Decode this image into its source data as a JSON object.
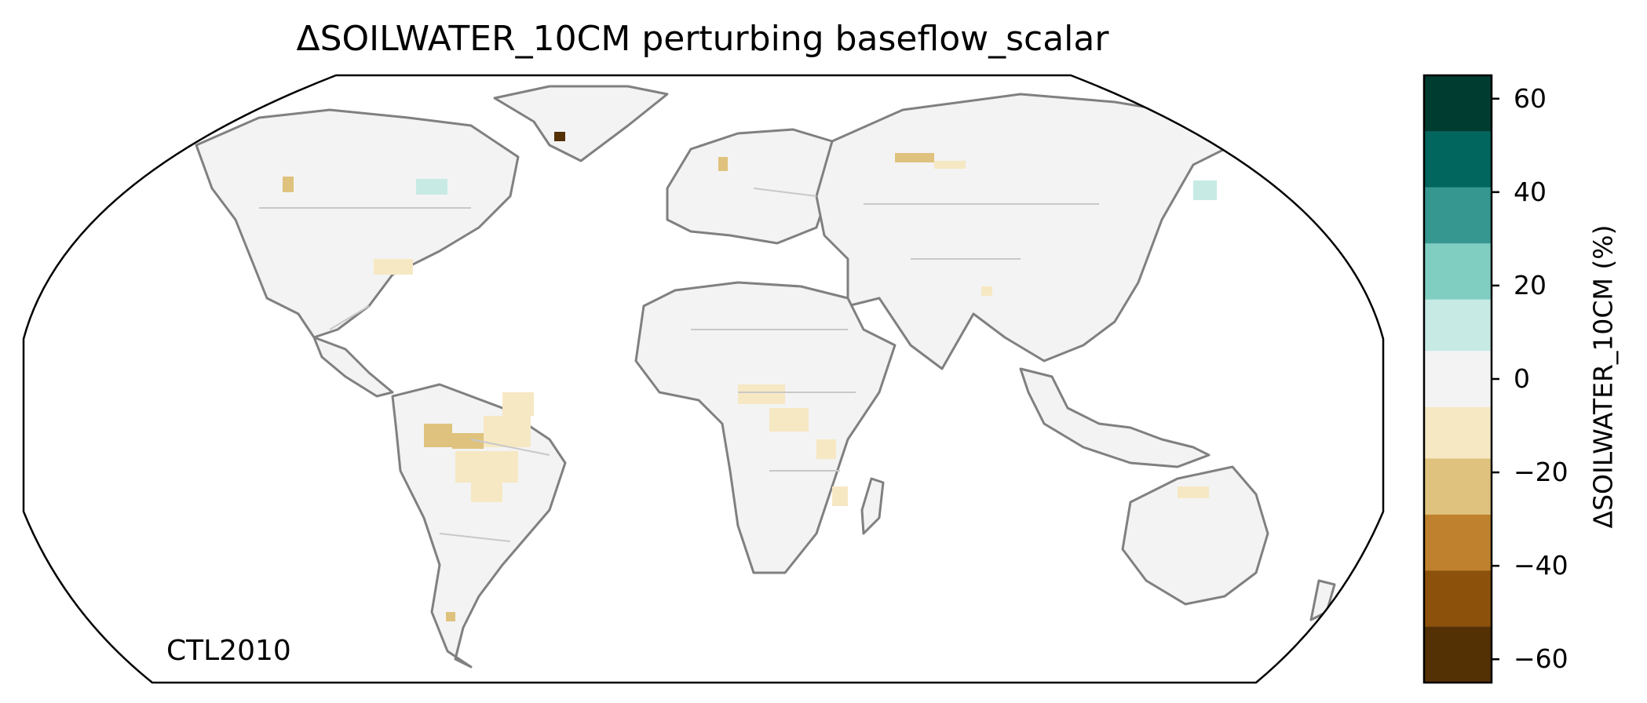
{
  "title": "ΔSOILWATER_10CM perturbing baseflow_scalar",
  "annotation": "CTL2010",
  "projection": "Robinson",
  "colorbar": {
    "label": "ΔSOILWATER_10CM (%)",
    "ticks": [
      {
        "value": 60,
        "label": "60"
      },
      {
        "value": 40,
        "label": "40"
      },
      {
        "value": 20,
        "label": "20"
      },
      {
        "value": 0,
        "label": "0"
      },
      {
        "value": -20,
        "label": "−20"
      },
      {
        "value": -40,
        "label": "−40"
      },
      {
        "value": -60,
        "label": "−60"
      }
    ],
    "range": [
      -65,
      65
    ],
    "bins": [
      {
        "from": -65,
        "to": -53,
        "color": "#543005"
      },
      {
        "from": -53,
        "to": -41,
        "color": "#8c510a"
      },
      {
        "from": -41,
        "to": -29,
        "color": "#bf812d"
      },
      {
        "from": -29,
        "to": -17,
        "color": "#dfc27d"
      },
      {
        "from": -17,
        "to": -6,
        "color": "#f6e8c3"
      },
      {
        "from": -6,
        "to": 6,
        "color": "#f3f3f3"
      },
      {
        "from": 6,
        "to": 17,
        "color": "#c7eae5"
      },
      {
        "from": 17,
        "to": 29,
        "color": "#80cdc1"
      },
      {
        "from": 29,
        "to": 41,
        "color": "#35978f"
      },
      {
        "from": 41,
        "to": 53,
        "color": "#01665e"
      },
      {
        "from": 53,
        "to": 65,
        "color": "#003c30"
      }
    ]
  },
  "colors": {
    "land_background": "#f3f3f3",
    "coastline": "#808080",
    "borders": "#c8c8c8"
  }
}
